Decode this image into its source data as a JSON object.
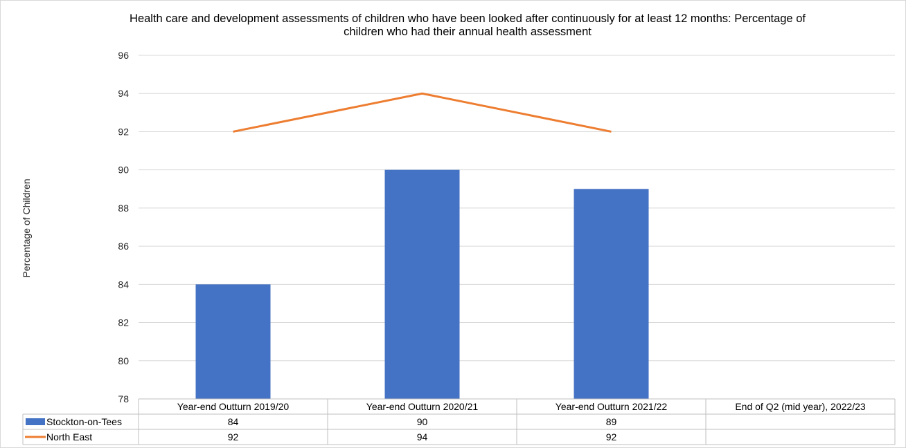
{
  "chart_data": {
    "type": "bar",
    "title": "Health care and development assessments of children who have been looked after continuously for at least 12 months: Percentage of children who had their annual health assessment",
    "ylabel": "Percentage of Children",
    "xlabel": "",
    "ylim": [
      78,
      96
    ],
    "yticks": [
      78,
      80,
      82,
      84,
      86,
      88,
      90,
      92,
      94,
      96
    ],
    "grid": true,
    "legend": "data-table",
    "categories": [
      "Year-end Outturn 2019/20",
      "Year-end Outturn 2020/21",
      "Year-end Outturn 2021/22",
      "End of Q2 (mid year), 2022/23"
    ],
    "series": [
      {
        "name": "Stockton-on-Tees",
        "type": "bar",
        "color": "#4472c4",
        "values": [
          84,
          90,
          89,
          null
        ]
      },
      {
        "name": "North East",
        "type": "line",
        "color": "#ed7d31",
        "values": [
          92,
          94,
          92,
          null
        ]
      }
    ]
  }
}
